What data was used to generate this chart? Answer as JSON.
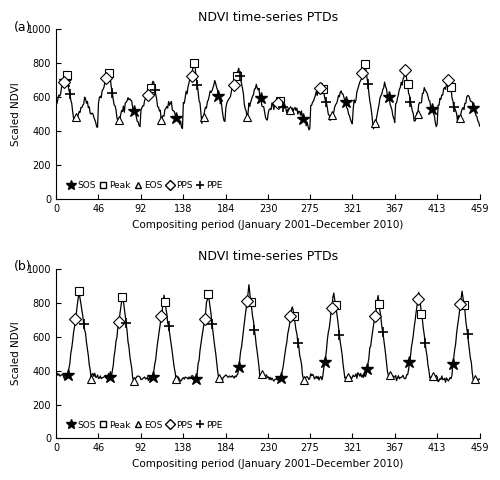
{
  "title": "NDVI time-series PTDs",
  "xlabel": "Compositing period (January 2001–December 2010)",
  "ylabel": "Scaled NDVI",
  "xlim": [
    0,
    459
  ],
  "ylim": [
    0,
    1000
  ],
  "xticks": [
    0,
    46,
    92,
    138,
    184,
    230,
    275,
    321,
    367,
    413,
    459
  ],
  "yticks": [
    0,
    200,
    400,
    600,
    800,
    1000
  ],
  "legend_items": [
    "SOS",
    "Peak",
    "EOS",
    "PPS",
    "PPE"
  ],
  "panel_labels": [
    "(a)",
    "(b)"
  ],
  "background_color": "#ffffff",
  "line_color": "#000000",
  "marker_color": "#000000",
  "line_width": 0.9
}
